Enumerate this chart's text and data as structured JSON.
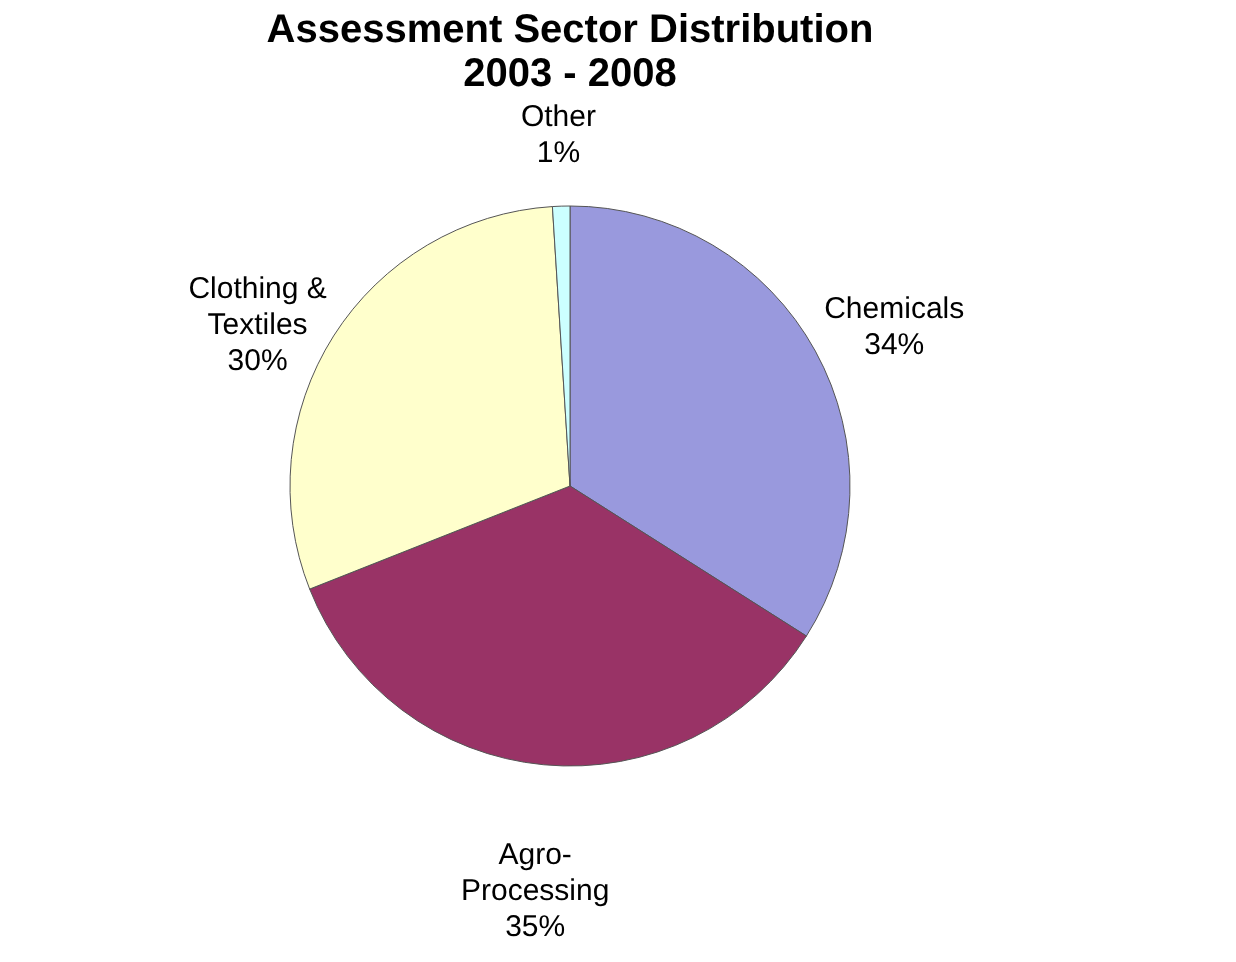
{
  "chart_data": {
    "type": "pie",
    "title": [
      "Assessment Sector Distribution",
      "2003 - 2008"
    ],
    "categories": [
      "Chemicals",
      "Agro-Processing",
      "Clothing & Textiles",
      "Other"
    ],
    "values": [
      34,
      35,
      30,
      1
    ],
    "value_labels": [
      "34%",
      "35%",
      "30%",
      "1%"
    ],
    "colors": [
      "#9999dd",
      "#993366",
      "#ffffcc",
      "#ccffff"
    ],
    "legend": false
  }
}
